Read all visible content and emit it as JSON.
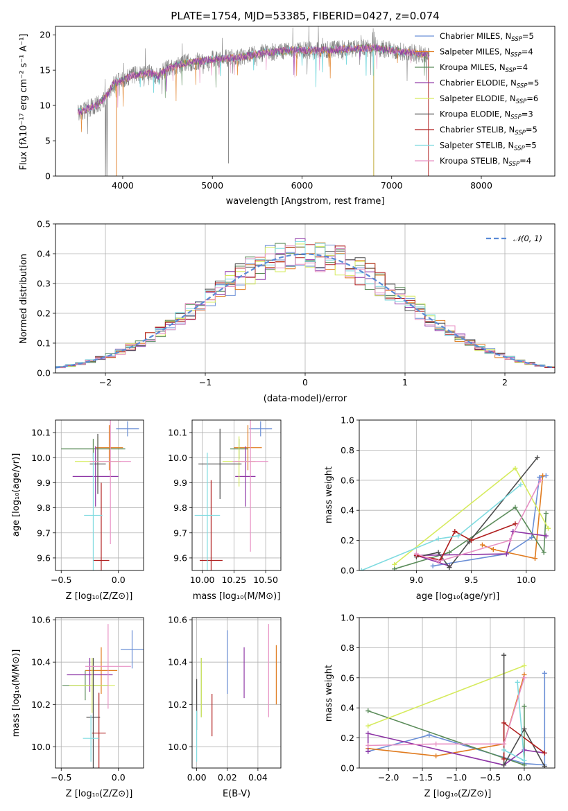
{
  "colors": [
    "#6b8fd6",
    "#e07b1f",
    "#5b8c5a",
    "#8e36a6",
    "#d6eb5e",
    "#4c4c4c",
    "#b01e1e",
    "#7fdbe0",
    "#e891c4"
  ],
  "chart_data": [
    {
      "id": "spectrum",
      "type": "line",
      "title": "PLATE=1754, MJD=53385, FIBERID=0427, z=0.074",
      "xlabel": "wavelength [Angstrom, rest frame]",
      "ylabel": "Flux [fλ10⁻¹⁷ erg cm⁻² s⁻¹ A⁻¹]",
      "xlim": [
        3250,
        8820
      ],
      "ylim": [
        0,
        21.2
      ],
      "xticks": [
        4000,
        5000,
        6000,
        7000,
        8000
      ],
      "yticks": [
        0,
        5,
        10,
        15,
        20
      ],
      "legend_loc": "right",
      "series": [
        {
          "name": "Chabrier MILES, N_SSP=5"
        },
        {
          "name": "Salpeter MILES, N_SSP=4"
        },
        {
          "name": "Kroupa MILES, N_SSP=4"
        },
        {
          "name": "Chabrier ELODIE, N_SSP=5"
        },
        {
          "name": "Salpeter ELODIE, N_SSP=6"
        },
        {
          "name": "Kroupa ELODIE, N_SSP=3"
        },
        {
          "name": "Chabrier STELIB, N_SSP=5"
        },
        {
          "name": "Salpeter STELIB, N_SSP=5"
        },
        {
          "name": "Kroupa STELIB, N_SSP=4"
        }
      ],
      "continuum": {
        "x": [
          3500,
          3600,
          3700,
          3800,
          3850,
          3900,
          4000,
          4100,
          4200,
          4300,
          4400,
          4500,
          4700,
          5000,
          5300,
          5600,
          5900,
          6200,
          6500,
          6800,
          7000,
          7200,
          7400
        ],
        "y": [
          9.0,
          9.5,
          10.0,
          11.0,
          12.0,
          13.2,
          13.5,
          14.2,
          14.4,
          14.6,
          14.2,
          15.2,
          16.0,
          16.5,
          16.8,
          17.5,
          17.8,
          17.8,
          18.0,
          18.2,
          17.8,
          17.5,
          17.2
        ]
      }
    },
    {
      "id": "residuals",
      "type": "line",
      "xlabel": "(data-model)/error",
      "ylabel": "Normed distribution",
      "xlim": [
        -2.5,
        2.5
      ],
      "ylim": [
        0,
        0.5
      ],
      "xticks": [
        -2,
        -1,
        0,
        1,
        2
      ],
      "yticks": [
        0.0,
        0.1,
        0.2,
        0.3,
        0.4,
        0.5
      ],
      "legend_label": "𝒩(0, 1)",
      "gaussian": {
        "mean": 0,
        "sigma": 1
      }
    },
    {
      "id": "age-vs-Z",
      "type": "scatter",
      "xlabel": "Z [log₁₀(Z/Z⊙)]",
      "ylabel": "age  [log₁₀(age/yr)]",
      "xlim": [
        -0.55,
        0.22
      ],
      "ylim": [
        9.55,
        10.15
      ],
      "xticks": [
        -0.5,
        0.0
      ],
      "yticks": [
        9.6,
        9.7,
        9.8,
        9.9,
        10.0,
        10.1
      ],
      "points": [
        {
          "x": 0.08,
          "y": 10.115,
          "xerr": 0.1,
          "yerr": 0.03
        },
        {
          "x": -0.08,
          "y": 10.04,
          "xerr": 0.12,
          "yerr": 0.09
        },
        {
          "x": -0.22,
          "y": 10.035,
          "xerr": 0.28,
          "yerr": 0.04
        },
        {
          "x": -0.2,
          "y": 9.925,
          "xerr": 0.2,
          "yerr": 0.12
        },
        {
          "x": -0.18,
          "y": 9.985,
          "xerr": 0.2,
          "yerr": 0.1
        },
        {
          "x": -0.18,
          "y": 9.975,
          "xerr": 0.07,
          "yerr": 0.12
        },
        {
          "x": -0.15,
          "y": 9.59,
          "xerr": 0.07,
          "yerr": 0.31
        },
        {
          "x": -0.22,
          "y": 9.77,
          "xerr": 0.08,
          "yerr": 0.25
        },
        {
          "x": -0.07,
          "y": 9.985,
          "xerr": 0.18,
          "yerr": 0.33
        }
      ]
    },
    {
      "id": "age-vs-mass",
      "type": "scatter",
      "xlabel": "mass [log₁₀(M/M⊙)]",
      "ylabel": "",
      "xlim": [
        9.92,
        10.62
      ],
      "ylim": [
        9.55,
        10.15
      ],
      "xticks": [
        10.0,
        10.25,
        10.5
      ],
      "yticks": [
        9.6,
        9.7,
        9.8,
        9.9,
        10.0,
        10.1
      ],
      "points": [
        {
          "x": 10.46,
          "y": 10.115,
          "xerr": 0.09,
          "yerr": 0.03
        },
        {
          "x": 10.36,
          "y": 10.04,
          "xerr": 0.11,
          "yerr": 0.09
        },
        {
          "x": 10.29,
          "y": 10.035,
          "xerr": 0.07,
          "yerr": 0.04
        },
        {
          "x": 10.34,
          "y": 9.925,
          "xerr": 0.08,
          "yerr": 0.12
        },
        {
          "x": 10.29,
          "y": 9.985,
          "xerr": 0.13,
          "yerr": 0.1
        },
        {
          "x": 10.14,
          "y": 9.975,
          "xerr": 0.17,
          "yerr": 0.14
        },
        {
          "x": 10.07,
          "y": 9.59,
          "xerr": 0.09,
          "yerr": 0.32
        },
        {
          "x": 10.04,
          "y": 9.77,
          "xerr": 0.1,
          "yerr": 0.25
        },
        {
          "x": 10.38,
          "y": 9.985,
          "xerr": 0.14,
          "yerr": 0.36
        }
      ]
    },
    {
      "id": "massweight-vs-age",
      "type": "line",
      "xlabel": "age  [log₁₀(age/yr)]",
      "ylabel": "mass weight",
      "xlim": [
        8.48,
        10.26
      ],
      "ylim": [
        0,
        1.0
      ],
      "xticks": [
        9.0,
        9.5,
        10.0
      ],
      "yticks": [
        0.0,
        0.2,
        0.4,
        0.6,
        0.8,
        1.0
      ],
      "series": [
        {
          "x": [
            10.18,
            10.12,
            10.05,
            9.82,
            9.15
          ],
          "y": [
            0.63,
            0.62,
            0.22,
            0.11,
            0.03
          ]
        },
        {
          "x": 10.15,
          "y": 0.63,
          "points": [
            [
              10.15,
              0.63
            ],
            [
              10.08,
              0.08
            ],
            [
              9.7,
              0.14
            ],
            [
              9.6,
              0.17
            ]
          ]
        },
        {
          "points": [
            [
              10.18,
              0.38
            ],
            [
              10.16,
              0.12
            ],
            [
              9.9,
              0.42
            ],
            [
              9.3,
              0.12
            ],
            [
              8.8,
              0.01
            ]
          ]
        },
        {
          "points": [
            [
              10.18,
              0.23
            ],
            [
              9.88,
              0.26
            ],
            [
              9.82,
              0.11
            ],
            [
              9.0,
              0.1
            ],
            [
              9.3,
              0.03
            ]
          ]
        },
        {
          "points": [
            [
              10.2,
              0.28
            ],
            [
              9.9,
              0.68
            ],
            [
              8.8,
              0.04
            ]
          ]
        },
        {
          "points": [
            [
              10.1,
              0.75
            ],
            [
              9.48,
              0.19
            ],
            [
              9.3,
              0.02
            ],
            [
              9.2,
              0.12
            ],
            [
              9.0,
              0.09
            ]
          ]
        },
        {
          "points": [
            [
              9.9,
              0.31
            ],
            [
              9.5,
              0.2
            ],
            [
              9.35,
              0.26
            ],
            [
              9.22,
              0.07
            ],
            [
              9.0,
              0.1
            ]
          ]
        },
        {
          "points": [
            [
              9.95,
              0.57
            ],
            [
              9.38,
              0.23
            ],
            [
              9.2,
              0.21
            ],
            [
              8.5,
              0.0
            ]
          ]
        },
        {
          "points": [
            [
              10.13,
              0.6
            ],
            [
              9.85,
              0.2
            ],
            [
              9.2,
              0.06
            ],
            [
              9.0,
              0.11
            ]
          ]
        }
      ]
    },
    {
      "id": "mass-vs-Z",
      "type": "scatter",
      "xlabel": "Z [log₁₀(Z/Z⊙)]",
      "ylabel": "mass [log₁₀(M/M⊙)]",
      "xlim": [
        -0.55,
        0.22
      ],
      "ylim": [
        9.9,
        10.61
      ],
      "xticks": [
        -0.5,
        0.0
      ],
      "yticks": [
        10.0,
        10.2,
        10.4,
        10.6
      ],
      "points": [
        {
          "x": 0.12,
          "y": 10.46,
          "xerr": 0.1,
          "yerr": 0.09
        },
        {
          "x": -0.15,
          "y": 10.36,
          "xerr": 0.14,
          "yerr": 0.11
        },
        {
          "x": -0.29,
          "y": 10.29,
          "xerr": 0.2,
          "yerr": 0.07
        },
        {
          "x": -0.25,
          "y": 10.34,
          "xerr": 0.2,
          "yerr": 0.08
        },
        {
          "x": -0.23,
          "y": 10.29,
          "xerr": 0.2,
          "yerr": 0.13
        },
        {
          "x": -0.22,
          "y": 10.14,
          "xerr": 0.06,
          "yerr": 0.28
        },
        {
          "x": -0.17,
          "y": 10.065,
          "xerr": 0.06,
          "yerr": 0.19
        },
        {
          "x": -0.24,
          "y": 10.04,
          "xerr": 0.07,
          "yerr": 0.11
        },
        {
          "x": -0.09,
          "y": 10.38,
          "xerr": 0.2,
          "yerr": 0.2
        }
      ]
    },
    {
      "id": "mass-vs-EBV",
      "type": "scatter",
      "xlabel": "E(B-V)",
      "ylabel": "",
      "xlim": [
        -0.003,
        0.055
      ],
      "ylim": [
        9.9,
        10.61
      ],
      "xticks": [
        0.0,
        0.02,
        0.04
      ],
      "yticks": [
        10.0,
        10.2,
        10.4,
        10.6
      ],
      "points": [
        {
          "x": 0.02,
          "y": 10.4,
          "yerr": 0.15
        },
        {
          "x": 0.052,
          "y": 10.34,
          "yerr": 0.14
        },
        {
          "x": 0.003,
          "y": 10.28,
          "yerr": 0.14
        },
        {
          "x": 0.031,
          "y": 10.35,
          "yerr": 0.12
        },
        {
          "x": 0.003,
          "y": 10.28,
          "yerr": 0.14
        },
        {
          "x": 0.0,
          "y": 10.2,
          "yerr": 0.12
        },
        {
          "x": 0.01,
          "y": 10.15,
          "yerr": 0.1
        },
        {
          "x": 0.0,
          "y": 10.05,
          "yerr": 0.12
        },
        {
          "x": 0.047,
          "y": 10.36,
          "yerr": 0.22
        }
      ]
    },
    {
      "id": "massweight-vs-Z",
      "type": "line",
      "xlabel": "Z [log₁₀(Z/Z⊙)]",
      "ylabel": "mass weight",
      "xlim": [
        -2.43,
        0.45
      ],
      "ylim": [
        0,
        1.0
      ],
      "xticks": [
        -2.0,
        -1.5,
        -1.0,
        -0.5,
        0.0
      ],
      "yticks": [
        0.0,
        0.2,
        0.4,
        0.6,
        0.8,
        1.0
      ],
      "series": [
        {
          "points": [
            [
              0.3,
              0.63
            ],
            [
              0.3,
              0.02
            ],
            [
              0.0,
              0.03
            ],
            [
              -1.4,
              0.22
            ],
            [
              -2.3,
              0.11
            ]
          ]
        },
        {
          "points": [
            [
              0.0,
              0.62
            ],
            [
              -0.3,
              0.16
            ],
            [
              -1.3,
              0.08
            ],
            [
              -2.3,
              0.13
            ]
          ]
        },
        {
          "points": [
            [
              0.0,
              0.41
            ],
            [
              0.0,
              0.02
            ],
            [
              -2.3,
              0.38
            ]
          ]
        },
        {
          "points": [
            [
              0.3,
              0.1
            ],
            [
              0.0,
              0.12
            ],
            [
              -0.3,
              0.02
            ],
            [
              -2.3,
              0.23
            ],
            [
              -2.3,
              0.11
            ]
          ]
        },
        {
          "points": [
            [
              0.0,
              0.68
            ],
            [
              -2.3,
              0.28
            ]
          ]
        },
        {
          "points": [
            [
              -0.3,
              0.75
            ],
            [
              -0.3,
              0.02
            ],
            [
              0.0,
              0.26
            ],
            [
              0.3,
              0.01
            ]
          ]
        },
        {
          "points": [
            [
              0.3,
              0.1
            ],
            [
              -0.3,
              0.3
            ],
            [
              -0.3,
              0.06
            ]
          ]
        },
        {
          "points": [
            [
              -0.1,
              0.57
            ],
            [
              0.0,
              0.05
            ],
            [
              -0.3,
              0.12
            ]
          ]
        },
        {
          "points": [
            [
              0.0,
              0.6
            ],
            [
              -0.3,
              0.16
            ],
            [
              -1.3,
              0.16
            ],
            [
              -2.3,
              0.15
            ]
          ]
        }
      ]
    }
  ]
}
